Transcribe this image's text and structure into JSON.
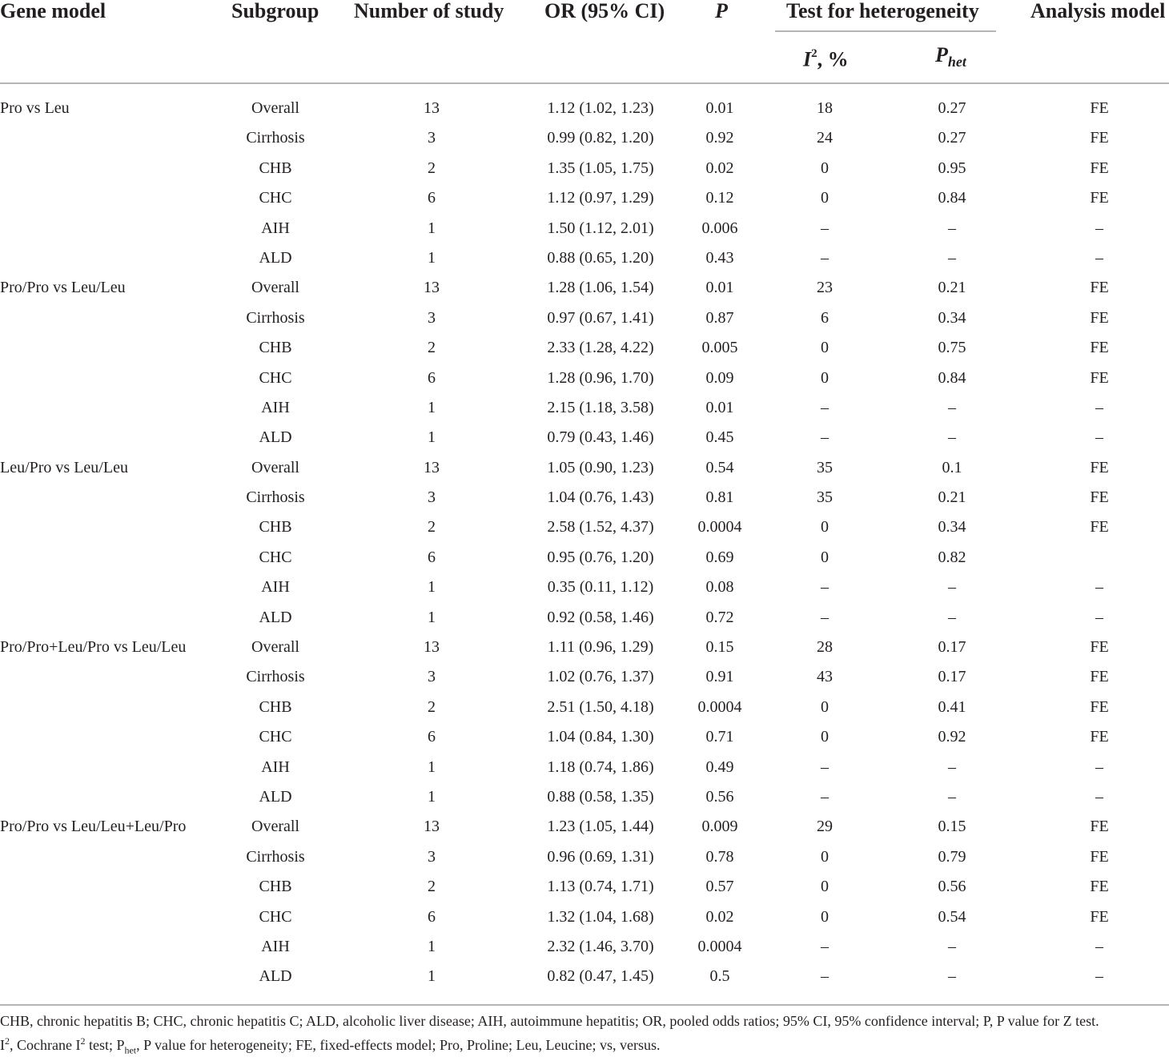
{
  "header": {
    "gene_model": "Gene model",
    "subgroup": "Subgroup",
    "number_of_study": "Number of study",
    "or_ci": "OR (95% CI)",
    "p": "P",
    "heterogeneity": "Test for heterogeneity",
    "analysis_model": "Analysis model",
    "i2_base": "I",
    "i2_sup": "2",
    "i2_suffix": ", %",
    "phet_base": "P",
    "phet_sub": "het"
  },
  "rows": [
    {
      "gene": "Pro vs Leu",
      "subgroup": "Overall",
      "n": "13",
      "or": "1.12 (1.02, 1.23)",
      "p": "0.01",
      "i2": "18",
      "phet": "0.27",
      "model": "FE"
    },
    {
      "gene": "",
      "subgroup": "Cirrhosis",
      "n": "3",
      "or": "0.99 (0.82, 1.20)",
      "p": "0.92",
      "i2": "24",
      "phet": "0.27",
      "model": "FE"
    },
    {
      "gene": "",
      "subgroup": "CHB",
      "n": "2",
      "or": "1.35 (1.05, 1.75)",
      "p": "0.02",
      "i2": "0",
      "phet": "0.95",
      "model": "FE"
    },
    {
      "gene": "",
      "subgroup": "CHC",
      "n": "6",
      "or": "1.12 (0.97, 1.29)",
      "p": "0.12",
      "i2": "0",
      "phet": "0.84",
      "model": "FE"
    },
    {
      "gene": "",
      "subgroup": "AIH",
      "n": "1",
      "or": "1.50 (1.12, 2.01)",
      "p": "0.006",
      "i2": "–",
      "phet": "–",
      "model": "–"
    },
    {
      "gene": "",
      "subgroup": "ALD",
      "n": "1",
      "or": "0.88 (0.65, 1.20)",
      "p": "0.43",
      "i2": "–",
      "phet": "–",
      "model": "–"
    },
    {
      "gene": "Pro/Pro vs Leu/Leu",
      "subgroup": "Overall",
      "n": "13",
      "or": "1.28 (1.06, 1.54)",
      "p": "0.01",
      "i2": "23",
      "phet": "0.21",
      "model": "FE"
    },
    {
      "gene": "",
      "subgroup": "Cirrhosis",
      "n": "3",
      "or": "0.97 (0.67, 1.41)",
      "p": "0.87",
      "i2": "6",
      "phet": "0.34",
      "model": "FE"
    },
    {
      "gene": "",
      "subgroup": "CHB",
      "n": "2",
      "or": "2.33 (1.28, 4.22)",
      "p": "0.005",
      "i2": "0",
      "phet": "0.75",
      "model": "FE"
    },
    {
      "gene": "",
      "subgroup": "CHC",
      "n": "6",
      "or": "1.28 (0.96, 1.70)",
      "p": "0.09",
      "i2": "0",
      "phet": "0.84",
      "model": "FE"
    },
    {
      "gene": "",
      "subgroup": "AIH",
      "n": "1",
      "or": "2.15 (1.18, 3.58)",
      "p": "0.01",
      "i2": "–",
      "phet": "–",
      "model": "–"
    },
    {
      "gene": "",
      "subgroup": "ALD",
      "n": "1",
      "or": "0.79 (0.43, 1.46)",
      "p": "0.45",
      "i2": "–",
      "phet": "–",
      "model": "–"
    },
    {
      "gene": "Leu/Pro vs Leu/Leu",
      "subgroup": "Overall",
      "n": "13",
      "or": "1.05 (0.90, 1.23)",
      "p": "0.54",
      "i2": "35",
      "phet": "0.1",
      "model": "FE"
    },
    {
      "gene": "",
      "subgroup": "Cirrhosis",
      "n": "3",
      "or": "1.04 (0.76, 1.43)",
      "p": "0.81",
      "i2": "35",
      "phet": "0.21",
      "model": "FE"
    },
    {
      "gene": "",
      "subgroup": "CHB",
      "n": "2",
      "or": "2.58 (1.52, 4.37)",
      "p": "0.0004",
      "i2": "0",
      "phet": "0.34",
      "model": "FE"
    },
    {
      "gene": "",
      "subgroup": "CHC",
      "n": "6",
      "or": "0.95 (0.76, 1.20)",
      "p": "0.69",
      "i2": "0",
      "phet": "0.82",
      "model": ""
    },
    {
      "gene": "",
      "subgroup": "AIH",
      "n": "1",
      "or": "0.35 (0.11, 1.12)",
      "p": "0.08",
      "i2": "–",
      "phet": "–",
      "model": "–"
    },
    {
      "gene": "",
      "subgroup": "ALD",
      "n": "1",
      "or": "0.92 (0.58, 1.46)",
      "p": "0.72",
      "i2": "–",
      "phet": "–",
      "model": "–"
    },
    {
      "gene": "Pro/Pro+Leu/Pro vs Leu/Leu",
      "subgroup": "Overall",
      "n": "13",
      "or": "1.11 (0.96, 1.29)",
      "p": "0.15",
      "i2": "28",
      "phet": "0.17",
      "model": "FE"
    },
    {
      "gene": "",
      "subgroup": "Cirrhosis",
      "n": "3",
      "or": "1.02 (0.76, 1.37)",
      "p": "0.91",
      "i2": "43",
      "phet": "0.17",
      "model": "FE"
    },
    {
      "gene": "",
      "subgroup": "CHB",
      "n": "2",
      "or": "2.51 (1.50, 4.18)",
      "p": "0.0004",
      "i2": "0",
      "phet": "0.41",
      "model": "FE"
    },
    {
      "gene": "",
      "subgroup": "CHC",
      "n": "6",
      "or": "1.04 (0.84, 1.30)",
      "p": "0.71",
      "i2": "0",
      "phet": "0.92",
      "model": "FE"
    },
    {
      "gene": "",
      "subgroup": "AIH",
      "n": "1",
      "or": "1.18 (0.74, 1.86)",
      "p": "0.49",
      "i2": "–",
      "phet": "–",
      "model": "–"
    },
    {
      "gene": "",
      "subgroup": "ALD",
      "n": "1",
      "or": "0.88 (0.58, 1.35)",
      "p": "0.56",
      "i2": "–",
      "phet": "–",
      "model": "–"
    },
    {
      "gene": "Pro/Pro vs Leu/Leu+Leu/Pro",
      "subgroup": "Overall",
      "n": "13",
      "or": "1.23 (1.05, 1.44)",
      "p": "0.009",
      "i2": "29",
      "phet": "0.15",
      "model": "FE"
    },
    {
      "gene": "",
      "subgroup": "Cirrhosis",
      "n": "3",
      "or": "0.96 (0.69, 1.31)",
      "p": "0.78",
      "i2": "0",
      "phet": "0.79",
      "model": "FE"
    },
    {
      "gene": "",
      "subgroup": "CHB",
      "n": "2",
      "or": "1.13 (0.74, 1.71)",
      "p": "0.57",
      "i2": "0",
      "phet": "0.56",
      "model": "FE"
    },
    {
      "gene": "",
      "subgroup": "CHC",
      "n": "6",
      "or": "1.32 (1.04, 1.68)",
      "p": "0.02",
      "i2": "0",
      "phet": "0.54",
      "model": "FE"
    },
    {
      "gene": "",
      "subgroup": "AIH",
      "n": "1",
      "or": "2.32 (1.46, 3.70)",
      "p": "0.0004",
      "i2": "–",
      "phet": "–",
      "model": "–"
    },
    {
      "gene": "",
      "subgroup": "ALD",
      "n": "1",
      "or": "0.82 (0.47, 1.45)",
      "p": "0.5",
      "i2": "–",
      "phet": "–",
      "model": "–"
    }
  ],
  "footnote": {
    "line1": "CHB, chronic hepatitis B; CHC, chronic hepatitis C; ALD, alcoholic liver disease; AIH, autoimmune hepatitis; OR, pooled odds ratios; 95% CI, 95% confidence interval; P, P value for Z test.",
    "l2_i": "I",
    "l2_sup1": "2",
    "l2_a": ", Cochrane I",
    "l2_sup2": "2",
    "l2_b": " test; P",
    "l2_sub": "het",
    "l2_c": ", P value for heterogeneity; FE, fixed-effects model; Pro, Proline; Leu, Leucine; vs, versus."
  }
}
